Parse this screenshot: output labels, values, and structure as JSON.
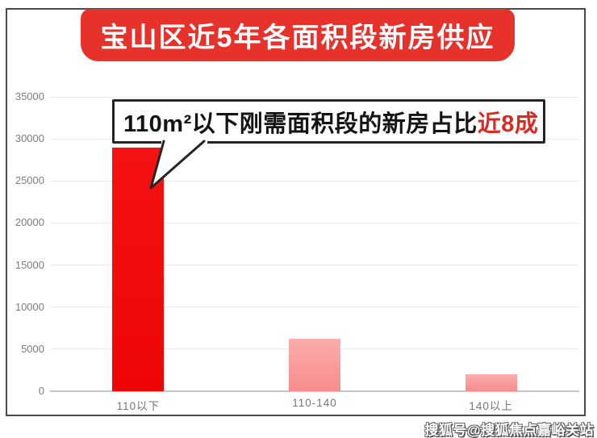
{
  "banner": {
    "title": "宝山区近5年各面积段新房供应"
  },
  "callout": {
    "text_main": "110m²以下刚需面积段的新房占比",
    "text_highlight": "近8成"
  },
  "watermark": {
    "text": "搜狐号@搜狐焦点嘉峪关站"
  },
  "colors": {
    "banner_bg": "#e7312b",
    "banner_text": "#ffffff",
    "highlight_red": "#db2a20",
    "bar_main_red": "#f30d0d",
    "bar_pink_top": "#fcacac",
    "bar_pink_bottom": "#f78d8d",
    "gridline": "#ebebeb",
    "axis_line": "#c6c6c6",
    "tick_text": "#7e7e7e",
    "frame_border": "#4a4a4a"
  },
  "chart_data": {
    "type": "bar",
    "title": "宝山区近5年各面积段新房供应",
    "categories": [
      "110以下",
      "110-140",
      "140以上"
    ],
    "values": [
      29000,
      6200,
      2000
    ],
    "xlabel": "",
    "ylabel": "",
    "ylim": [
      0,
      35000
    ],
    "yticks": [
      0,
      5000,
      10000,
      15000,
      20000,
      25000,
      30000,
      35000
    ],
    "grid": true,
    "legend_position": "none",
    "bar_styles": [
      {
        "top": "#f51212",
        "bottom": "#ee0606"
      },
      {
        "top": "#fcacac",
        "bottom": "#f78d8d"
      },
      {
        "top": "#fcacac",
        "bottom": "#f78d8d"
      }
    ],
    "annotation": {
      "text": "110m²以下刚需面积段的新房占比近8成",
      "highlight": "近8成",
      "points_to_category": "110以下"
    }
  }
}
